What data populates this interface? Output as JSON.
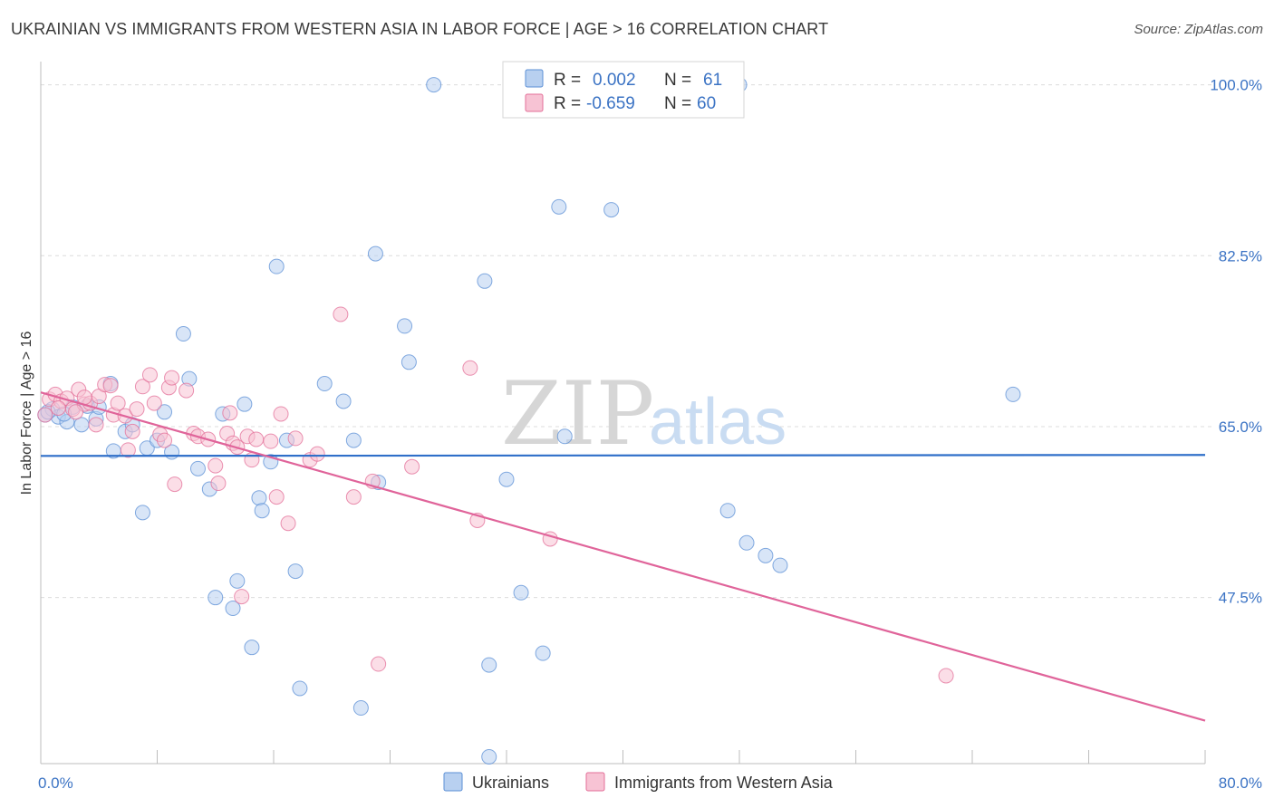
{
  "header": {
    "title": "UKRAINIAN VS IMMIGRANTS FROM WESTERN ASIA IN LABOR FORCE | AGE > 16 CORRELATION CHART",
    "source": "Source: ZipAtlas.com"
  },
  "colors": {
    "blue_fill": "#b8d0f0",
    "blue_stroke": "#5b8fd6",
    "blue_line": "#2f6fc9",
    "pink_fill": "#f7c3d4",
    "pink_stroke": "#e36f98",
    "pink_line": "#e0649a",
    "grid": "#dcdcdc",
    "axis_label": "#3b73c4"
  },
  "watermark": {
    "zip": "ZIP",
    "atlas": "atlas"
  },
  "legend": {
    "rows": [
      {
        "r_label": "R =",
        "r_value": "0.002",
        "n_label": "N =",
        "n_value": "61"
      },
      {
        "r_label": "R =",
        "r_value": "-0.659",
        "n_label": "N =",
        "n_value": "60"
      }
    ]
  },
  "bottom_legend": [
    "Ukrainians",
    "Immigrants from Western Asia"
  ],
  "chart_data": {
    "type": "scatter",
    "title": "UKRAINIAN VS IMMIGRANTS FROM WESTERN ASIA IN LABOR FORCE | AGE > 16 CORRELATION CHART",
    "xlabel": "",
    "ylabel": "In Labor Force | Age > 16",
    "xlim": [
      0,
      80
    ],
    "ylim": [
      30.5,
      102
    ],
    "x_tick_labels": [
      {
        "value": 0,
        "label": "0.0%"
      },
      {
        "value": 80,
        "label": "80.0%"
      }
    ],
    "y_tick_labels": [
      {
        "value": 100,
        "label": "100.0%"
      },
      {
        "value": 82.5,
        "label": "82.5%"
      },
      {
        "value": 65,
        "label": "65.0%"
      },
      {
        "value": 47.5,
        "label": "47.5%"
      }
    ],
    "y_gridlines": [
      100,
      82.5,
      65,
      47.5
    ],
    "x_minor_ticks": [
      0,
      8,
      16,
      24,
      32,
      40,
      48,
      56,
      64,
      72,
      80
    ],
    "series": [
      {
        "name": "Ukrainians",
        "color": "blue",
        "R": 0.002,
        "N": 61,
        "trend": {
          "x": [
            0,
            80
          ],
          "y": [
            62.0,
            62.1
          ]
        },
        "points": [
          [
            0.3,
            66.2
          ],
          [
            0.8,
            66.8
          ],
          [
            1.2,
            66.0
          ],
          [
            1.8,
            65.5
          ],
          [
            2.2,
            67.0
          ],
          [
            2.8,
            65.2
          ],
          [
            3.2,
            67.1
          ],
          [
            3.8,
            65.8
          ],
          [
            4.0,
            67.0
          ],
          [
            4.8,
            69.4
          ],
          [
            5.0,
            62.5
          ],
          [
            5.8,
            64.5
          ],
          [
            6.3,
            65.2
          ],
          [
            7.0,
            56.2
          ],
          [
            7.3,
            62.8
          ],
          [
            8.0,
            63.6
          ],
          [
            8.5,
            66.5
          ],
          [
            9.0,
            62.4
          ],
          [
            9.8,
            74.5
          ],
          [
            10.2,
            69.9
          ],
          [
            10.8,
            60.7
          ],
          [
            11.6,
            58.6
          ],
          [
            12.0,
            47.5
          ],
          [
            12.5,
            66.3
          ],
          [
            13.2,
            46.4
          ],
          [
            13.5,
            49.2
          ],
          [
            14.0,
            67.3
          ],
          [
            14.5,
            42.4
          ],
          [
            15.0,
            57.7
          ],
          [
            15.2,
            56.4
          ],
          [
            15.8,
            61.4
          ],
          [
            16.2,
            81.4
          ],
          [
            16.9,
            63.6
          ],
          [
            17.5,
            50.2
          ],
          [
            17.8,
            38.2
          ],
          [
            19.5,
            69.4
          ],
          [
            20.8,
            67.6
          ],
          [
            21.5,
            63.6
          ],
          [
            22.0,
            36.2
          ],
          [
            23.0,
            82.7
          ],
          [
            23.2,
            59.3
          ],
          [
            25.0,
            75.3
          ],
          [
            25.3,
            71.6
          ],
          [
            27.0,
            100.0
          ],
          [
            30.5,
            79.9
          ],
          [
            30.8,
            40.6
          ],
          [
            30.8,
            31.2
          ],
          [
            32.0,
            59.6
          ],
          [
            33.0,
            48.0
          ],
          [
            34.5,
            41.8
          ],
          [
            35.6,
            87.5
          ],
          [
            36.0,
            64.0
          ],
          [
            39.2,
            87.2
          ],
          [
            47.2,
            56.4
          ],
          [
            48.5,
            53.1
          ],
          [
            49.8,
            51.8
          ],
          [
            50.8,
            50.8
          ],
          [
            48.0,
            100.0
          ],
          [
            66.8,
            68.3
          ],
          [
            0.5,
            66.5
          ],
          [
            1.6,
            66.3
          ]
        ]
      },
      {
        "name": "Immigrants from Western Asia",
        "color": "pink",
        "R": -0.659,
        "N": 60,
        "trend": {
          "x": [
            0,
            80
          ],
          "y": [
            68.5,
            34.9
          ]
        },
        "points": [
          [
            0.3,
            66.2
          ],
          [
            0.6,
            67.8
          ],
          [
            1.0,
            68.3
          ],
          [
            1.4,
            67.6
          ],
          [
            1.8,
            67.9
          ],
          [
            2.2,
            66.8
          ],
          [
            2.6,
            68.8
          ],
          [
            3.0,
            67.3
          ],
          [
            3.4,
            67.4
          ],
          [
            3.8,
            65.2
          ],
          [
            4.0,
            68.1
          ],
          [
            4.4,
            69.3
          ],
          [
            4.8,
            69.2
          ],
          [
            5.0,
            66.2
          ],
          [
            5.3,
            67.4
          ],
          [
            5.8,
            66.1
          ],
          [
            6.0,
            62.6
          ],
          [
            6.3,
            64.5
          ],
          [
            6.6,
            66.8
          ],
          [
            7.0,
            69.1
          ],
          [
            7.5,
            70.3
          ],
          [
            7.8,
            67.4
          ],
          [
            8.2,
            64.2
          ],
          [
            8.5,
            63.6
          ],
          [
            8.8,
            69.0
          ],
          [
            9.0,
            70.0
          ],
          [
            9.2,
            59.1
          ],
          [
            10.0,
            68.7
          ],
          [
            10.5,
            64.3
          ],
          [
            10.8,
            64.0
          ],
          [
            11.5,
            63.7
          ],
          [
            12.0,
            61.0
          ],
          [
            12.2,
            59.2
          ],
          [
            12.8,
            64.3
          ],
          [
            13.0,
            66.4
          ],
          [
            13.2,
            63.3
          ],
          [
            13.5,
            62.9
          ],
          [
            13.8,
            47.6
          ],
          [
            14.2,
            64.0
          ],
          [
            14.5,
            61.6
          ],
          [
            14.8,
            63.7
          ],
          [
            15.8,
            63.5
          ],
          [
            16.2,
            57.8
          ],
          [
            16.5,
            66.3
          ],
          [
            17.0,
            55.1
          ],
          [
            17.5,
            63.8
          ],
          [
            18.5,
            61.6
          ],
          [
            19.0,
            62.2
          ],
          [
            20.6,
            76.5
          ],
          [
            21.5,
            57.8
          ],
          [
            22.8,
            59.4
          ],
          [
            23.2,
            40.7
          ],
          [
            25.5,
            60.9
          ],
          [
            29.5,
            71.0
          ],
          [
            30.0,
            55.4
          ],
          [
            35.0,
            53.5
          ],
          [
            62.2,
            39.5
          ],
          [
            1.2,
            66.9
          ],
          [
            2.4,
            66.5
          ],
          [
            3.0,
            68.0
          ]
        ]
      }
    ]
  }
}
